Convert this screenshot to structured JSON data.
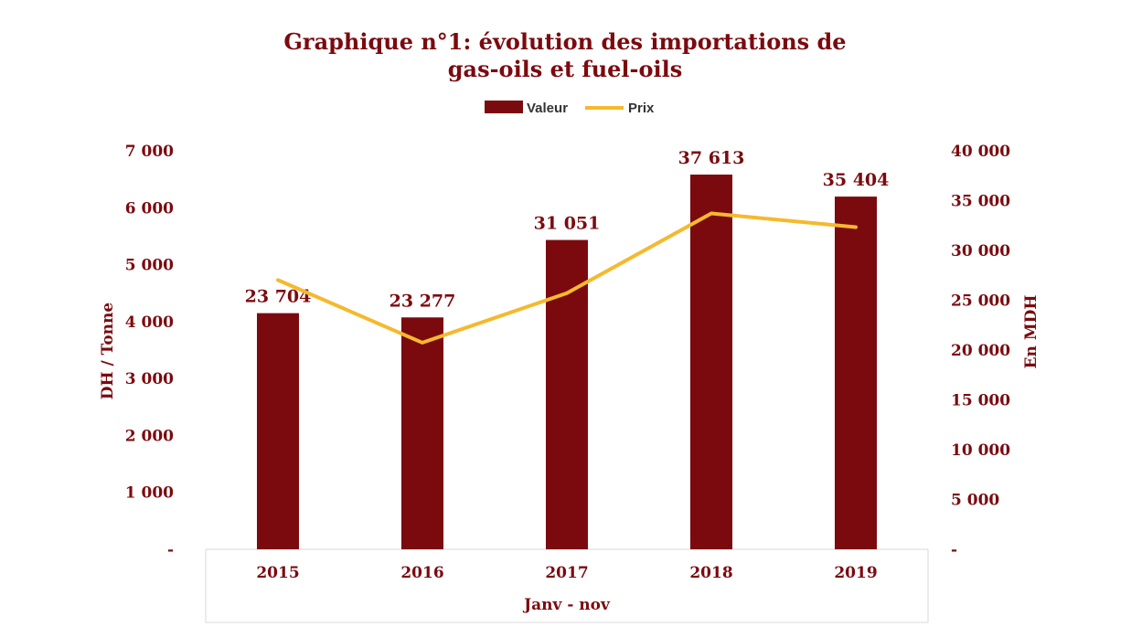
{
  "chart_data": {
    "type": "bar",
    "title_line1": "Graphique n°1: évolution des importations de",
    "title_line2": "gas-oils et fuel-oils",
    "categories": [
      "2015",
      "2016",
      "2017",
      "2018",
      "2019"
    ],
    "series": [
      {
        "name": "Valeur",
        "kind": "bar",
        "axis": "right",
        "values": [
          23704,
          23277,
          31051,
          37613,
          35404
        ],
        "labels": [
          "23 704",
          "23 277",
          "31 051",
          "37 613",
          "35 404"
        ]
      },
      {
        "name": "Prix",
        "kind": "line",
        "axis": "left",
        "values": [
          4730,
          3630,
          4500,
          5900,
          5660
        ]
      }
    ],
    "ylabel_left": "DH / Tonne",
    "ylabel_right": "En MDH",
    "xlabel": "Janv - nov",
    "ylim_left": [
      0,
      7000
    ],
    "ylim_right": [
      0,
      40000
    ],
    "yticks_left": [
      "-",
      "1 000",
      "2 000",
      "3 000",
      "4 000",
      "5 000",
      "6 000",
      "7 000"
    ],
    "yticks_right": [
      "-",
      "5 000",
      "10 000",
      "15 000",
      "20 000",
      "25 000",
      "30 000",
      "35 000",
      "40 000"
    ],
    "grid": false,
    "legend_position": "top-center",
    "colors": {
      "bar": "#7B0A0F",
      "line": "#F5B92E",
      "text": "#7B0A0F",
      "axis_box": "#D9D9D9"
    }
  }
}
